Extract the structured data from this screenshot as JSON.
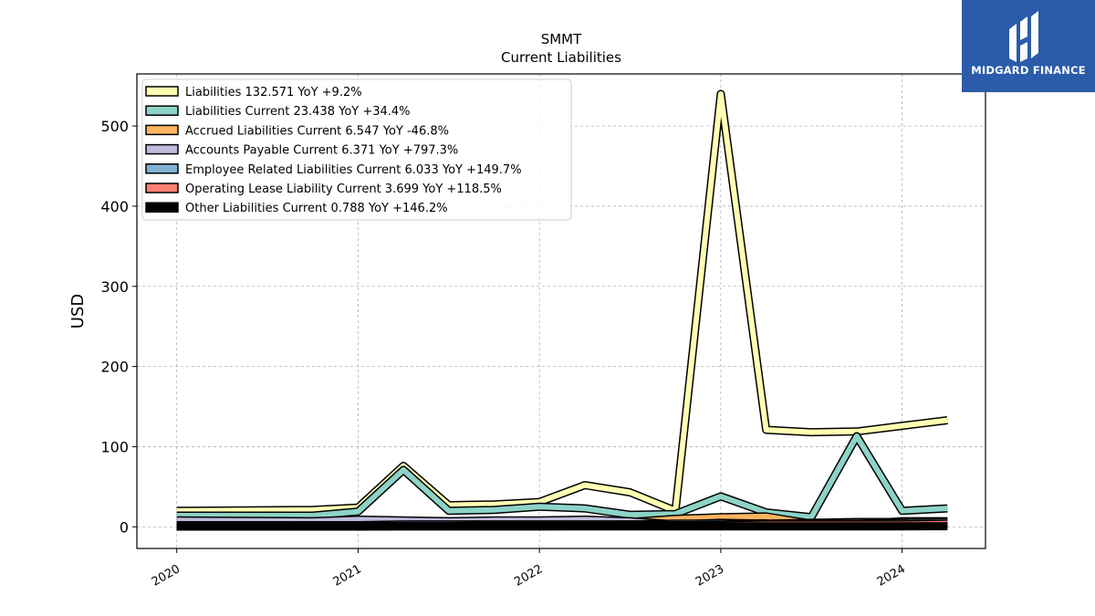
{
  "chart_data": {
    "type": "line",
    "title": "SMMT",
    "subtitle": "Current  Liabilities",
    "ylabel": "USD",
    "xlabel": "",
    "ylim": [
      -27,
      565
    ],
    "xlim": [
      2019.78,
      2024.46
    ],
    "yticks": [
      0,
      100,
      200,
      300,
      400,
      500
    ],
    "xticks": [
      {
        "value": 2020,
        "label": "2020"
      },
      {
        "value": 2021,
        "label": "2021"
      },
      {
        "value": 2022,
        "label": "2022"
      },
      {
        "value": 2023,
        "label": "2023"
      },
      {
        "value": 2024,
        "label": "2024"
      }
    ],
    "grid": true,
    "legend_position": "top-left",
    "x": [
      2020.0,
      2020.75,
      2021.0,
      2021.25,
      2021.5,
      2021.75,
      2022.0,
      2022.25,
      2022.5,
      2022.75,
      2023.0,
      2023.25,
      2023.5,
      2023.75,
      2024.0,
      2024.25
    ],
    "series": [
      {
        "name": "Liabilities",
        "legend": "Liabilities  132.571 YoY +9.2%",
        "color": "#ffffb3",
        "values": [
          20,
          21,
          24,
          76,
          27,
          28,
          31,
          52,
          43,
          20,
          540,
          121,
          118,
          119,
          126,
          133
        ]
      },
      {
        "name": "Liabilities Current",
        "legend": "Liabilities Current  23.438 YoY +34.4%",
        "color": "#8dd3c7",
        "values": [
          14,
          14,
          19,
          71,
          20,
          21,
          25,
          23,
          15,
          16,
          38,
          18,
          12,
          113,
          20,
          23
        ]
      },
      {
        "name": "Accrued Liabilities Current",
        "legend": "Accrued Liabilities Current  6.547 YoY -46.8%",
        "color": "#fdb462",
        "values": [
          3,
          3,
          4,
          5,
          5,
          5,
          5,
          5,
          6,
          10,
          12,
          13,
          4,
          3,
          7,
          7
        ]
      },
      {
        "name": "Accounts Payable Current",
        "legend": "Accounts Payable Current  6.371 YoY +797.3%",
        "color": "#bebada",
        "values": [
          8,
          7,
          9,
          8,
          7,
          8,
          8,
          9,
          7,
          3,
          5,
          4,
          5,
          6,
          6,
          6
        ]
      },
      {
        "name": "Employee Related Liabilities Current",
        "legend": "Employee Related Liabilities Current  6.033 YoY +149.7%",
        "color": "#80b1d3",
        "values": [
          2,
          2,
          2,
          3,
          3,
          3,
          3,
          3,
          3,
          4,
          4,
          3,
          4,
          4,
          5,
          6
        ]
      },
      {
        "name": "Operating Lease Liability Current",
        "legend": "Operating Lease Liability Current  3.699 YoY +118.5%",
        "color": "#fb8072",
        "values": [
          1,
          1,
          1,
          1,
          1,
          2,
          2,
          2,
          2,
          2,
          2,
          3,
          3,
          3,
          3,
          4
        ]
      },
      {
        "name": "Other Liabilities Current",
        "legend": "Other Liabilities Current  0.788 YoY +146.2%",
        "color": "#000000",
        "values": [
          0.3,
          0.3,
          0.3,
          0.4,
          0.4,
          0.4,
          0.4,
          0.5,
          0.5,
          0.5,
          0.5,
          0.6,
          0.6,
          0.7,
          0.7,
          0.8
        ]
      }
    ]
  },
  "logo": {
    "text": "MIDGARD FINANCE"
  }
}
